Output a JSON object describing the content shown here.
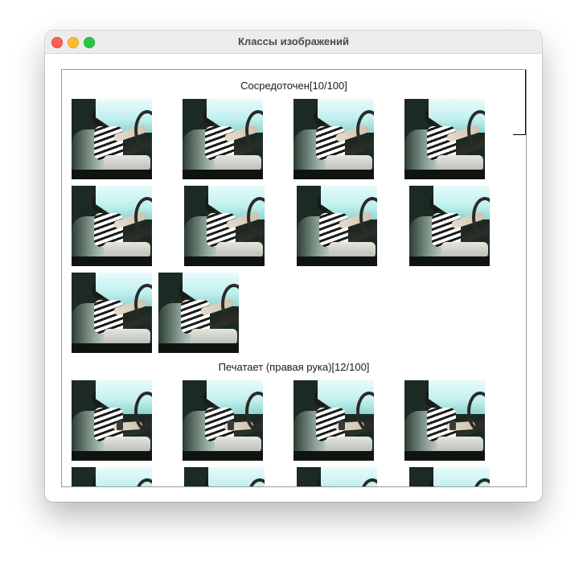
{
  "window": {
    "title": "Классы изображений"
  },
  "sections": [
    {
      "label": "Сосредоточен[10/100]",
      "thumb_icon": "driver-focused-photo",
      "count": 10
    },
    {
      "label": "Печатает (правая рука)[12/100]",
      "thumb_icon": "driver-texting-right-photo",
      "count": 12
    }
  ],
  "colors": {
    "close": "#fe5f57",
    "minimize": "#febc2e",
    "maximize": "#28c840"
  }
}
